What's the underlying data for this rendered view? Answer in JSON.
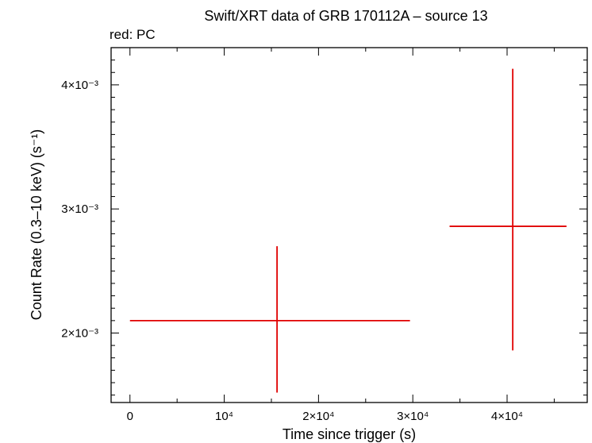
{
  "chart_data": {
    "type": "scatter",
    "title": "Swift/XRT data of GRB 170112A – source 13",
    "subtitle": "red: PC",
    "xlabel": "Time since trigger (s)",
    "ylabel": "Count Rate (0.3–10 keV) (s⁻¹)",
    "xlim": [
      -2000,
      48500
    ],
    "ylim": [
      0.00144,
      0.0043
    ],
    "grid": false,
    "color": "#e00000",
    "x_ticks": [
      {
        "value": 0,
        "label": "0"
      },
      {
        "value": 10000,
        "label": "10⁴"
      },
      {
        "value": 20000,
        "label": "2×10⁴"
      },
      {
        "value": 30000,
        "label": "3×10⁴"
      },
      {
        "value": 40000,
        "label": "4×10⁴"
      }
    ],
    "y_ticks": [
      {
        "value": 0.002,
        "label": "2×10⁻³"
      },
      {
        "value": 0.003,
        "label": "3×10⁻³"
      },
      {
        "value": 0.004,
        "label": "4×10⁻³"
      }
    ],
    "series": [
      {
        "points": [
          {
            "x": 15600,
            "x_low": 0,
            "x_high": 29700,
            "y": 0.0021,
            "y_low": 0.00152,
            "y_high": 0.0027
          },
          {
            "x": 40600,
            "x_low": 33900,
            "x_high": 46300,
            "y": 0.00286,
            "y_low": 0.00186,
            "y_high": 0.00413
          }
        ]
      }
    ]
  }
}
